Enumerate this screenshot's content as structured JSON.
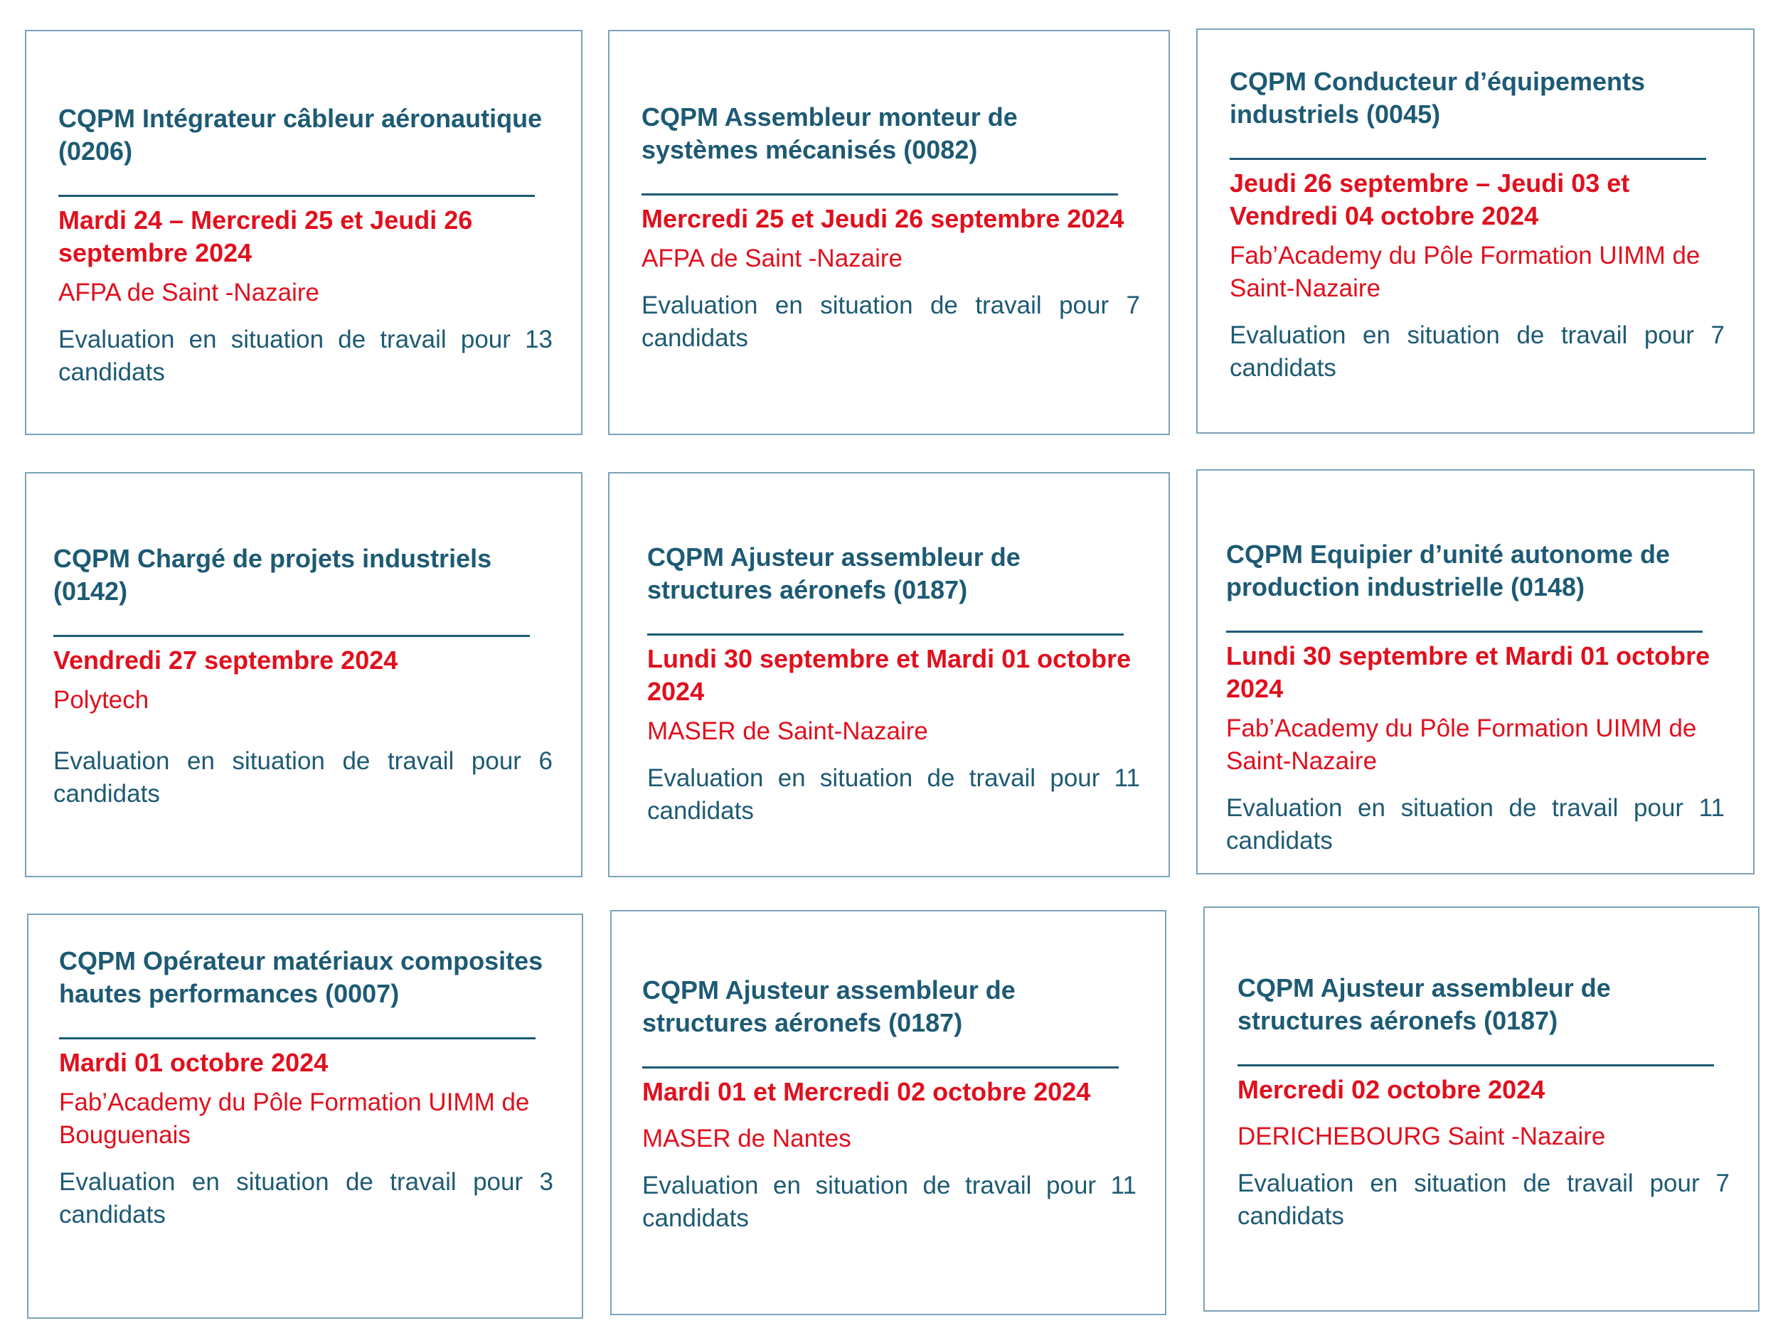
{
  "cards": [
    {
      "title": "CQPM Intégrateur câbleur aéronautique (0206)",
      "date": "Mardi 24 – Mercredi 25 et Jeudi 26 septembre 2024",
      "place": "AFPA de Saint -Nazaire",
      "evaluation": "Evaluation en situation de travail pour 13 candidats"
    },
    {
      "title": "CQPM Assembleur monteur de systèmes mécanisés (0082)",
      "date": "Mercredi 25 et Jeudi 26 septembre 2024",
      "place": "AFPA de Saint -Nazaire",
      "evaluation": "Evaluation en situation de travail pour 7 candidats"
    },
    {
      "title": "CQPM Conducteur d’équipements industriels (0045)",
      "date": "Jeudi 26 septembre – Jeudi 03 et Vendredi 04 octobre 2024",
      "place": "Fab’Academy du Pôle Formation UIMM de Saint-Nazaire",
      "evaluation": "Evaluation en situation de travail pour 7 candidats"
    },
    {
      "title": "CQPM Chargé de projets industriels (0142)",
      "date": "Vendredi 27 septembre 2024",
      "place": "Polytech",
      "evaluation": "Evaluation en situation de travail pour 6 candidats"
    },
    {
      "title": "CQPM Ajusteur assembleur de structures aéronefs (0187)",
      "date": "Lundi 30 septembre et Mardi 01 octobre 2024",
      "place": "MASER de Saint-Nazaire",
      "evaluation": "Evaluation en situation de travail pour 11 candidats"
    },
    {
      "title": "CQPM Equipier d’unité autonome de production industrielle (0148)",
      "date": "Lundi 30 septembre et Mardi 01 octobre 2024",
      "place": "Fab’Academy du Pôle Formation UIMM de Saint-Nazaire",
      "evaluation": "Evaluation en situation de travail pour 11 candidats"
    },
    {
      "title": "CQPM Opérateur matériaux composites hautes performances (0007)",
      "date": "Mardi 01 octobre 2024",
      "place": "Fab’Academy du Pôle Formation UIMM de Bouguenais",
      "evaluation": "Evaluation en situation de travail pour 3 candidats"
    },
    {
      "title": "CQPM Ajusteur assembleur de structures aéronefs (0187)",
      "date": "Mardi 01 et Mercredi 02 octobre 2024",
      "place": "MASER de Nantes",
      "evaluation": "Evaluation en situation de travail pour 11 candidats"
    },
    {
      "title": "CQPM Ajusteur assembleur de structures aéronefs (0187)",
      "date": "Mercredi 02 octobre 2024",
      "place": "DERICHEBOURG Saint -Nazaire",
      "evaluation": "Evaluation en situation de travail pour 7 candidats"
    }
  ]
}
